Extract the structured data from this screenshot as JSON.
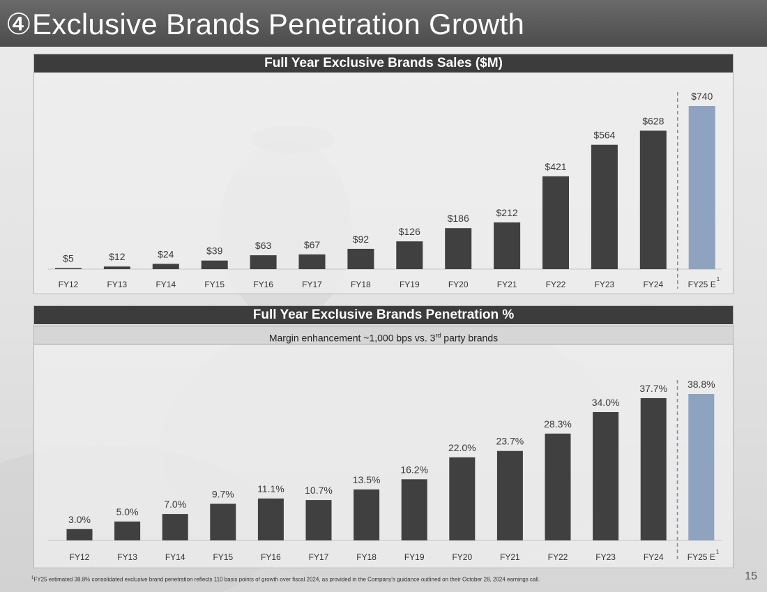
{
  "slide": {
    "title": "④Exclusive Brands Penetration Growth",
    "page_number": "15",
    "footnote_marker": "1",
    "footnote": "FY25 estimated 38.8% consolidated exclusive brand penetration reflects 110 basis points of growth over fiscal 2024, as provided in the Company's guidance outlined on their October 28, 2024 earnings call."
  },
  "colors": {
    "actual_bar": "#404040",
    "estimate_bar": "#8ea3bf",
    "header_bg": "#3c3c3c",
    "divider": "#7d90aa"
  },
  "chart_data": [
    {
      "type": "bar",
      "title": "Full Year Exclusive Brands Sales ($M)",
      "categories": [
        "FY12",
        "FY13",
        "FY14",
        "FY15",
        "FY16",
        "FY17",
        "FY18",
        "FY19",
        "FY20",
        "FY21",
        "FY22",
        "FY23",
        "FY24",
        "FY25 E"
      ],
      "category_superscripts": [
        "",
        "",
        "",
        "",
        "",
        "",
        "",
        "",
        "",
        "",
        "",
        "",
        "",
        "1"
      ],
      "values": [
        5,
        12,
        24,
        39,
        63,
        67,
        92,
        126,
        186,
        212,
        421,
        564,
        628,
        740
      ],
      "value_labels": [
        "$5",
        "$12",
        "$24",
        "$39",
        "$63",
        "$67",
        "$92",
        "$126",
        "$186",
        "$212",
        "$421",
        "$564",
        "$628",
        "$740"
      ],
      "ylim": [
        0,
        740
      ],
      "estimate_index": 13,
      "grid": false
    },
    {
      "type": "bar",
      "title": "Full Year Exclusive Brands Penetration %",
      "subtitle_pre": "Margin enhancement ~1,000 bps vs. 3",
      "subtitle_sup": "rd",
      "subtitle_post": " party brands",
      "categories": [
        "FY12",
        "FY13",
        "FY14",
        "FY15",
        "FY16",
        "FY17",
        "FY18",
        "FY19",
        "FY20",
        "FY21",
        "FY22",
        "FY23",
        "FY24",
        "FY25 E"
      ],
      "category_superscripts": [
        "",
        "",
        "",
        "",
        "",
        "",
        "",
        "",
        "",
        "",
        "",
        "",
        "",
        "1"
      ],
      "values": [
        3.0,
        5.0,
        7.0,
        9.7,
        11.1,
        10.7,
        13.5,
        16.2,
        22.0,
        23.7,
        28.3,
        34.0,
        37.7,
        38.8
      ],
      "value_labels": [
        "3.0%",
        "5.0%",
        "7.0%",
        "9.7%",
        "11.1%",
        "10.7%",
        "13.5%",
        "16.2%",
        "22.0%",
        "23.7%",
        "28.3%",
        "34.0%",
        "37.7%",
        "38.8%"
      ],
      "ylim": [
        0,
        38.8
      ],
      "estimate_index": 13,
      "grid": false
    }
  ]
}
